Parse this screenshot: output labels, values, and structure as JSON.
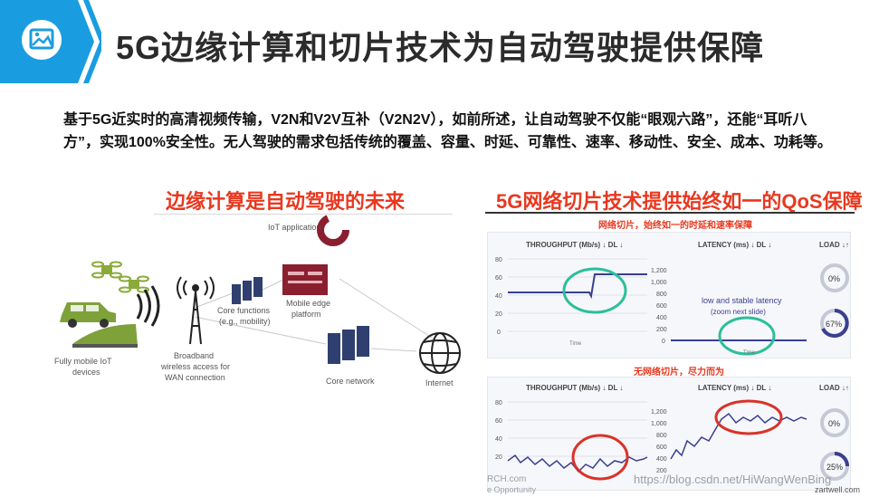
{
  "header": {
    "title": "5G边缘计算和切片技术为自动驾驶提供保障"
  },
  "intro": {
    "text": "基于5G近实时的高清视频传输，V2N和V2V互补（V2N2V），如前所述，让自动驾驶不仅能“眼观六路”，还能“耳听八方”，实现100%安全性。无人驾驶的需求包括传统的覆盖、容量、时延、可靠性、速率、移动性、安全、成本、功耗等。"
  },
  "left": {
    "title": "边缘计算是自动驾驶的未来",
    "labels": {
      "iot_app": "IoT application",
      "core_functions_1": "Core functions",
      "core_functions_2": "(e.g., mobility)",
      "mobile_edge_1": "Mobile edge",
      "mobile_edge_2": "platform",
      "broadband_1": "Broadband",
      "broadband_2": "wireless access for",
      "broadband_3": "WAN connection",
      "core_network": "Core network",
      "internet": "Internet",
      "devices_1": "Fully mobile IoT",
      "devices_2": "devices"
    }
  },
  "right": {
    "title": "5G网络切片技术提供始终如一的QoS保障",
    "top_caption": "网络切片，始终如一的时延和速率保障",
    "bottom_caption": "无网络切片，尽力而为",
    "throughput_label": "THROUGHPUT (Mb/s) ↓ DL ↓",
    "latency_label": "LATENCY (ms) ↓ DL ↓",
    "load_label": "LOAD ↓↑",
    "time_label": "Time",
    "throughput_ticks": [
      "80",
      "60",
      "40",
      "20",
      "0"
    ],
    "latency_ticks": [
      "1,200",
      "1,000",
      "800",
      "600",
      "400",
      "200",
      "0"
    ],
    "latency_note_1": "low and stable latency",
    "latency_note_2": "(zoom next slide)",
    "gauge_top_1": "0%",
    "gauge_top_2": "67%",
    "gauge_bottom_1": "0%",
    "gauge_bottom_2": "25%",
    "brand": "zartwell.com",
    "brand_left": "RCH.com",
    "brand_left_2": "e Opportunity"
  },
  "watermark": "https://blog.csdn.net/HiWangWenBing",
  "colors": {
    "accent_blue": "#1a9de0",
    "title_red": "#e8381f",
    "series_blue": "#3a3f8f",
    "circle_green": "#2bbf9a",
    "circle_red": "#d8332a"
  }
}
